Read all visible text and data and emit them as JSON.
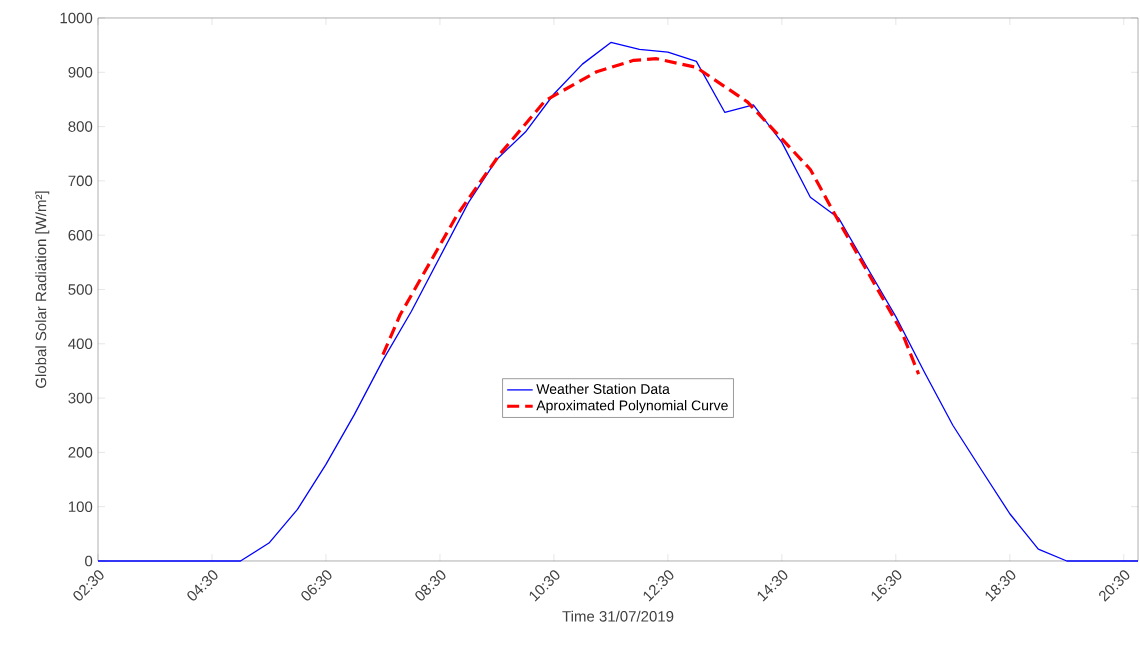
{
  "chart_data": {
    "type": "line",
    "xlabel": "Time 31/07/2019",
    "ylabel": "Global Solar Radiation [W/m²]",
    "xlim": [
      2.5,
      20.75
    ],
    "ylim": [
      0,
      1000
    ],
    "xticks": [
      {
        "value": 2.5,
        "label": "02:30"
      },
      {
        "value": 4.5,
        "label": "04:30"
      },
      {
        "value": 6.5,
        "label": "06:30"
      },
      {
        "value": 8.5,
        "label": "08:30"
      },
      {
        "value": 10.5,
        "label": "10:30"
      },
      {
        "value": 12.5,
        "label": "12:30"
      },
      {
        "value": 14.5,
        "label": "14:30"
      },
      {
        "value": 16.5,
        "label": "16:30"
      },
      {
        "value": 18.5,
        "label": "18:30"
      },
      {
        "value": 20.5,
        "label": "20:30"
      }
    ],
    "yticks": [
      0,
      100,
      200,
      300,
      400,
      500,
      600,
      700,
      800,
      900,
      1000
    ],
    "grid": false,
    "legend": "center",
    "marker": "none",
    "series": [
      {
        "name": "Weather Station Data",
        "color": "#0000ff",
        "line_style": "solid",
        "x": [
          2.5,
          3.0,
          3.5,
          4.0,
          4.5,
          5.0,
          5.5,
          6.0,
          6.5,
          7.0,
          7.5,
          8.0,
          8.5,
          9.0,
          9.5,
          10.0,
          10.5,
          11.0,
          11.5,
          12.0,
          12.5,
          13.0,
          13.5,
          14.0,
          14.5,
          15.0,
          15.5,
          16.0,
          16.5,
          17.0,
          17.5,
          18.0,
          18.5,
          19.0,
          19.5,
          20.0,
          20.5,
          20.75
        ],
        "values": [
          0,
          0,
          0,
          0,
          0,
          0,
          33,
          95,
          178,
          270,
          370,
          460,
          560,
          660,
          740,
          790,
          860,
          915,
          955,
          942,
          937,
          920,
          826,
          840,
          771,
          670,
          631,
          540,
          450,
          348,
          250,
          168,
          87,
          22,
          0,
          0,
          0,
          0
        ]
      },
      {
        "name": "Aproximated Polynomial Curve",
        "color": "#ff0000",
        "line_style": "dashed",
        "x": [
          7.5,
          7.8,
          8.8,
          9.55,
          10.35,
          11.25,
          11.9,
          12.3,
          13.0,
          13.9,
          15.0,
          15.5,
          16.6,
          16.9
        ],
        "values": [
          380,
          453,
          637,
          749,
          848,
          901,
          922,
          925,
          909,
          845,
          721,
          625,
          423,
          344
        ]
      }
    ]
  }
}
